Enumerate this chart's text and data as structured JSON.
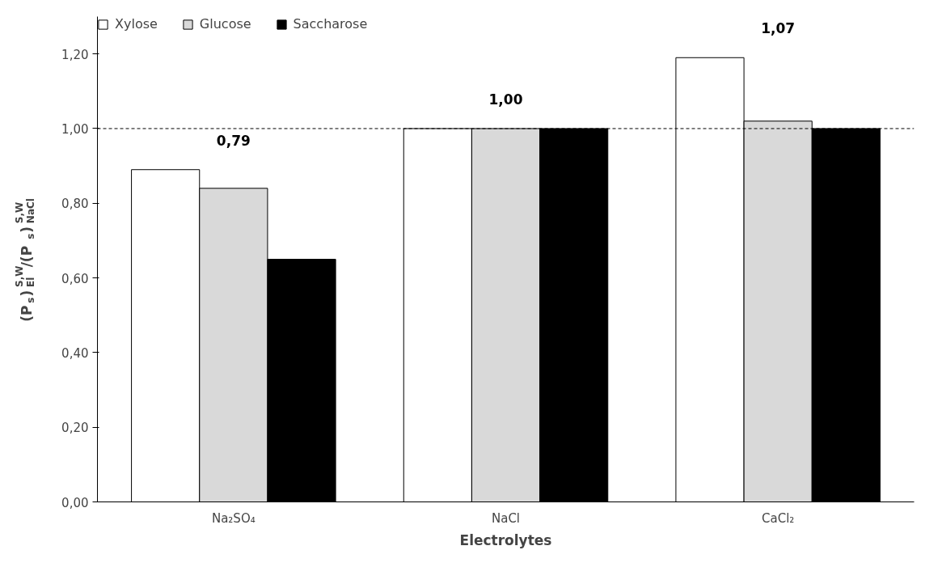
{
  "chart_data": {
    "type": "bar",
    "xlabel": "Electrolytes",
    "ylabel": "(P$_{s}$)$^{S,W}$$_{El}$/(P$_{s}$)$^{S,W}$$_{NaCl}$",
    "categories": [
      "Na₂SO₄",
      "NaCl",
      "CaCl₂"
    ],
    "series": [
      {
        "name": "Xylose",
        "color": "#ffffff",
        "values": [
          0.89,
          1.0,
          1.19
        ]
      },
      {
        "name": "Glucose",
        "color": "#d9d9d9",
        "values": [
          0.84,
          1.0,
          1.02
        ]
      },
      {
        "name": "Saccharose",
        "color": "#000000",
        "values": [
          0.65,
          1.0,
          1.0
        ]
      }
    ],
    "ylim": [
      0,
      1.3
    ],
    "yticks": [
      {
        "value": 0,
        "label": "0,00"
      },
      {
        "value": 0.2,
        "label": "0,20"
      },
      {
        "value": 0.4,
        "label": "0,40"
      },
      {
        "value": 0.6,
        "label": "0,60"
      },
      {
        "value": 0.8,
        "label": "0,80"
      },
      {
        "value": 1.0,
        "label": "1,00"
      },
      {
        "value": 1.2,
        "label": "1,20"
      }
    ],
    "ref_lines": [
      {
        "axis": "y",
        "value": 1.0,
        "line_style": "dashed",
        "color": "#000000"
      }
    ],
    "annotations": [
      "0,79",
      "1,00",
      "1,07"
    ],
    "grid": false,
    "legend": "top"
  }
}
